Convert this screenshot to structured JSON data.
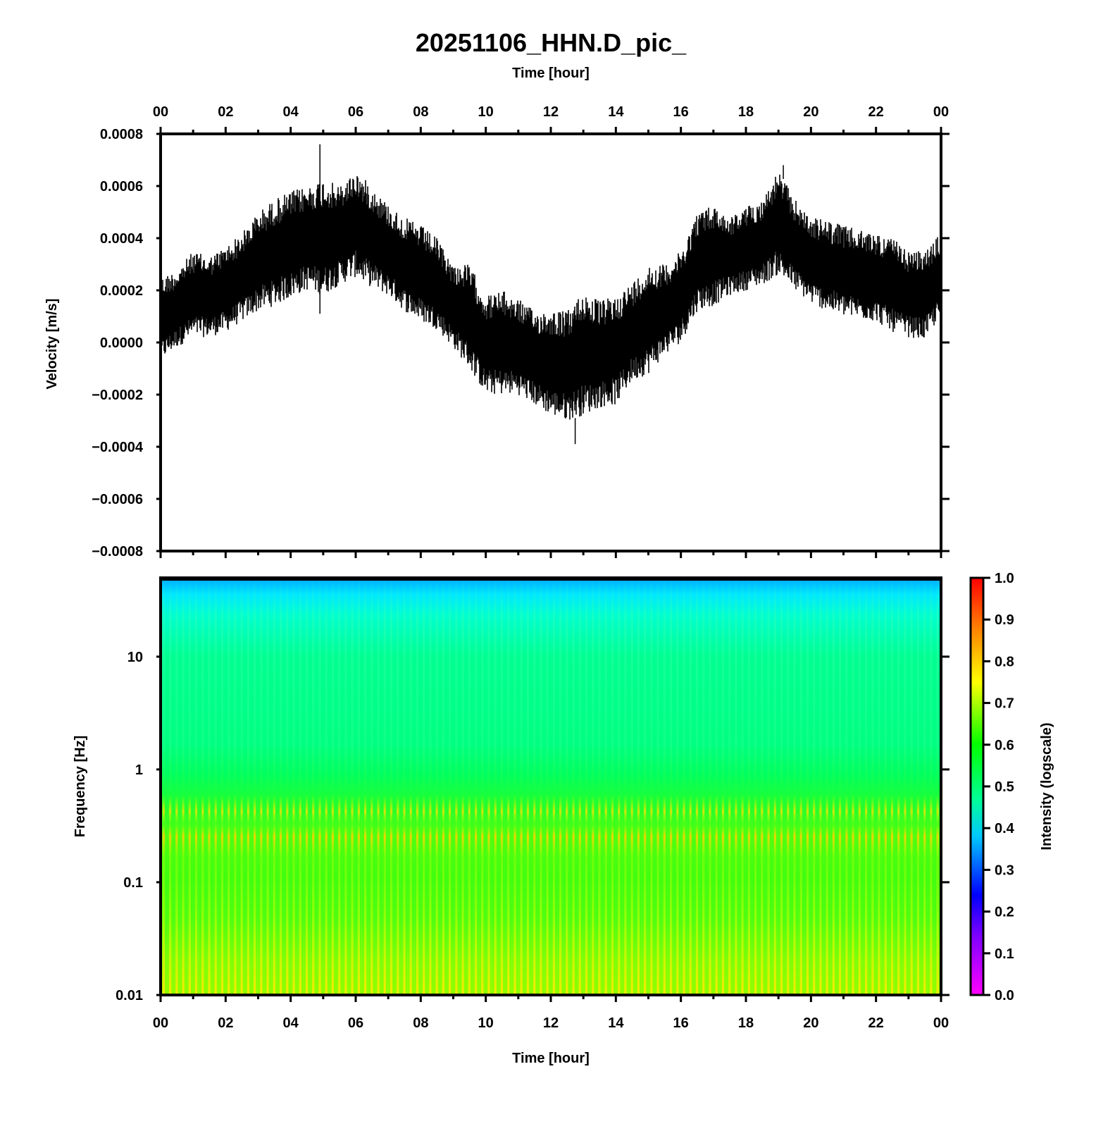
{
  "figure": {
    "title": "20251106_HHN.D_pic_",
    "top_xlabel": "Time [hour]",
    "bottom_xlabel": "Time [hour]"
  },
  "chart_data": [
    {
      "type": "line",
      "name": "velocity-waveform",
      "ylabel": "Velocity [m/s]",
      "xlabel": "Time [hour]",
      "xlim": [
        0,
        24
      ],
      "ylim": [
        -0.0008,
        0.0008
      ],
      "x_tick_labels": [
        "00",
        "02",
        "04",
        "06",
        "08",
        "10",
        "12",
        "14",
        "16",
        "18",
        "20",
        "22",
        "00"
      ],
      "y_tick_labels": [
        "0.0008",
        "0.0006",
        "0.0004",
        "0.0002",
        "0.0000",
        "−0.0002",
        "−0.0004",
        "−0.0006",
        "−0.0008"
      ],
      "y_tick_values": [
        0.0008,
        0.0006,
        0.0004,
        0.0002,
        0.0,
        -0.0002,
        -0.0004,
        -0.0006,
        -0.0008
      ],
      "series_color": "#000000",
      "envelope": {
        "hours": [
          0,
          0.5,
          1,
          1.5,
          2,
          2.5,
          3,
          3.5,
          4,
          4.5,
          5,
          5.5,
          6,
          6.5,
          7,
          7.5,
          8,
          8.5,
          9,
          9.5,
          10,
          10.5,
          11,
          11.5,
          12,
          12.5,
          13,
          13.5,
          14,
          14.5,
          15,
          15.5,
          16,
          16.5,
          17,
          17.5,
          18,
          18.5,
          19,
          19.5,
          20,
          20.5,
          21,
          21.5,
          22,
          22.5,
          23,
          23.5,
          24
        ],
        "upper": [
          0.00025,
          0.00028,
          0.00035,
          0.00033,
          0.00037,
          0.00042,
          0.0005,
          0.00055,
          0.00058,
          0.0006,
          0.00063,
          0.0006,
          0.00066,
          0.0006,
          0.00053,
          0.00048,
          0.00045,
          0.0004,
          0.0003,
          0.0003,
          0.00018,
          0.0002,
          0.00017,
          0.00012,
          0.00013,
          0.00012,
          0.0002,
          0.00016,
          0.00018,
          0.00023,
          0.0003,
          0.0003,
          0.00035,
          0.0005,
          0.00053,
          0.00048,
          0.00052,
          0.00055,
          0.00066,
          0.00055,
          0.00048,
          0.00047,
          0.00045,
          0.00043,
          0.00042,
          0.0004,
          0.00035,
          0.00035,
          0.00042
        ],
        "lower": [
          -7e-05,
          -2e-05,
          2e-05,
          2e-05,
          4e-05,
          8e-05,
          0.00012,
          0.00014,
          0.00017,
          0.0002,
          0.00018,
          0.00022,
          0.00025,
          0.00021,
          0.00018,
          0.00012,
          8e-05,
          5e-05,
          -2e-05,
          -0.0001,
          -0.0002,
          -0.0002,
          -0.0002,
          -0.00024,
          -0.00028,
          -0.0003,
          -0.00028,
          -0.00025,
          -0.00024,
          -0.00015,
          -0.00012,
          -5e-05,
          0.0,
          0.00012,
          0.00014,
          0.00018,
          0.0002,
          0.00022,
          0.00026,
          0.0002,
          0.00015,
          0.00012,
          0.0001,
          9e-05,
          8e-05,
          4e-05,
          2e-05,
          1e-05,
          0.0001
        ],
        "spikes": [
          {
            "hour": 4.9,
            "value": 0.00076
          },
          {
            "hour": 4.9,
            "value": 0.00011
          },
          {
            "hour": 12.75,
            "value": -0.00039
          },
          {
            "hour": 19.15,
            "value": 0.00068
          }
        ]
      }
    },
    {
      "type": "heatmap",
      "name": "spectrogram",
      "ylabel": "Frequency [Hz]",
      "xlabel": "Time [hour]",
      "xlim": [
        0,
        24
      ],
      "ylim": [
        0.01,
        50
      ],
      "yscale": "log",
      "x_tick_labels": [
        "00",
        "02",
        "04",
        "06",
        "08",
        "10",
        "12",
        "14",
        "16",
        "18",
        "20",
        "22",
        "00"
      ],
      "y_tick_labels": [
        "10",
        "1",
        "0.1",
        "0.01"
      ],
      "y_tick_values": [
        10,
        1,
        0.1,
        0.01
      ],
      "colorbar": {
        "label": "Intensity (logscale)",
        "range": [
          0.0,
          1.0
        ],
        "tick_labels": [
          "1.0",
          "0.9",
          "0.8",
          "0.7",
          "0.6",
          "0.5",
          "0.4",
          "0.3",
          "0.2",
          "0.1",
          "0.0"
        ],
        "tick_values": [
          1.0,
          0.9,
          0.8,
          0.7,
          0.6,
          0.5,
          0.4,
          0.3,
          0.2,
          0.1,
          0.0
        ],
        "colors": [
          "#ff00ff",
          "#0000ff",
          "#00c8ff",
          "#00ff64",
          "#00ff00",
          "#ffff00",
          "#ff8000",
          "#ff0000"
        ]
      },
      "intensity_profile": {
        "freq_hz": [
          50,
          40,
          20,
          10,
          3,
          1,
          0.6,
          0.4,
          0.25,
          0.15,
          0.05,
          0.02,
          0.01
        ],
        "intensity": [
          0.36,
          0.4,
          0.47,
          0.5,
          0.5,
          0.53,
          0.56,
          0.62,
          0.68,
          0.58,
          0.6,
          0.64,
          0.66
        ]
      },
      "striations_per_hour": 5
    }
  ]
}
